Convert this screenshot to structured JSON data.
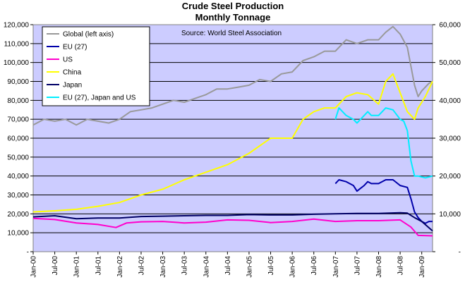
{
  "chart_data": {
    "type": "line",
    "title": "Crude Steel Production",
    "subtitle": "Monthly Tonnage",
    "source": "Source: World Steel Association",
    "xlabel": "",
    "ylabel": "",
    "ylim_left": [
      0,
      120000
    ],
    "ylim_right": [
      0,
      60000
    ],
    "y_ticks_left": [
      "-",
      "10,000",
      "20,000",
      "30,000",
      "40,000",
      "50,000",
      "60,000",
      "70,000",
      "80,000",
      "90,000",
      "100,000",
      "110,000",
      "120,000"
    ],
    "y_ticks_right": [
      "-",
      "10,000",
      "20,000",
      "30,000",
      "40,000",
      "50,000",
      "60,000"
    ],
    "x_ticks": [
      "Jan-00",
      "Jul-00",
      "Jan-01",
      "Jul-01",
      "Jan-02",
      "Jul-02",
      "Jan-03",
      "Jul-03",
      "Jan-04",
      "Jul-04",
      "Jan-05",
      "Jul-05",
      "Jan-06",
      "Jul-06",
      "Jan-07",
      "Jul-07",
      "Jan-08",
      "Jul-08",
      "Jan-09"
    ],
    "x_start": "2000-01",
    "x_end": "2009-04",
    "grid": true,
    "legend_position": "top-left",
    "plot_background": "#ccccff",
    "series": [
      {
        "name": "Global (left axis)",
        "axis": "left",
        "color": "#999999",
        "points": [
          [
            "2000-01",
            67000
          ],
          [
            "2000-04",
            70000
          ],
          [
            "2000-07",
            69000
          ],
          [
            "2000-10",
            70000
          ],
          [
            "2001-01",
            67000
          ],
          [
            "2001-04",
            70000
          ],
          [
            "2001-07",
            69000
          ],
          [
            "2001-10",
            68000
          ],
          [
            "2002-01",
            70000
          ],
          [
            "2002-04",
            74000
          ],
          [
            "2002-07",
            75000
          ],
          [
            "2002-10",
            76000
          ],
          [
            "2003-01",
            78000
          ],
          [
            "2003-04",
            80000
          ],
          [
            "2003-07",
            79000
          ],
          [
            "2003-10",
            81000
          ],
          [
            "2004-01",
            83000
          ],
          [
            "2004-04",
            86000
          ],
          [
            "2004-07",
            86000
          ],
          [
            "2004-10",
            87000
          ],
          [
            "2005-01",
            88000
          ],
          [
            "2005-04",
            91000
          ],
          [
            "2005-07",
            90000
          ],
          [
            "2005-10",
            94000
          ],
          [
            "2006-01",
            95000
          ],
          [
            "2006-04",
            101000
          ],
          [
            "2006-07",
            103000
          ],
          [
            "2006-10",
            106000
          ],
          [
            "2007-01",
            106000
          ],
          [
            "2007-04",
            112000
          ],
          [
            "2007-07",
            110000
          ],
          [
            "2007-10",
            112000
          ],
          [
            "2008-01",
            112000
          ],
          [
            "2008-03",
            116000
          ],
          [
            "2008-05",
            119000
          ],
          [
            "2008-07",
            115000
          ],
          [
            "2008-09",
            108000
          ],
          [
            "2008-11",
            88000
          ],
          [
            "2008-12",
            82000
          ],
          [
            "2009-01",
            85000
          ],
          [
            "2009-02",
            87000
          ],
          [
            "2009-03",
            89000
          ],
          [
            "2009-04",
            90000
          ]
        ]
      },
      {
        "name": "EU (27)",
        "axis": "right",
        "color": "#0000aa",
        "points": [
          [
            "2007-01",
            18000
          ],
          [
            "2007-02",
            19000
          ],
          [
            "2007-04",
            18500
          ],
          [
            "2007-06",
            17500
          ],
          [
            "2007-07",
            16000
          ],
          [
            "2007-09",
            17500
          ],
          [
            "2007-10",
            18500
          ],
          [
            "2007-11",
            18000
          ],
          [
            "2008-01",
            18000
          ],
          [
            "2008-03",
            19000
          ],
          [
            "2008-05",
            19000
          ],
          [
            "2008-07",
            17500
          ],
          [
            "2008-09",
            17000
          ],
          [
            "2008-10",
            14000
          ],
          [
            "2008-11",
            10500
          ],
          [
            "2008-12",
            9000
          ],
          [
            "2009-01",
            8000
          ],
          [
            "2009-02",
            7500
          ],
          [
            "2009-03",
            8000
          ],
          [
            "2009-04",
            8000
          ]
        ]
      },
      {
        "name": "US",
        "axis": "right",
        "color": "#ff00cc",
        "points": [
          [
            "2000-01",
            8800
          ],
          [
            "2000-07",
            8500
          ],
          [
            "2001-01",
            7600
          ],
          [
            "2001-07",
            7200
          ],
          [
            "2001-12",
            6400
          ],
          [
            "2002-03",
            7600
          ],
          [
            "2002-07",
            7900
          ],
          [
            "2003-01",
            8000
          ],
          [
            "2003-07",
            7600
          ],
          [
            "2004-01",
            7800
          ],
          [
            "2004-07",
            8400
          ],
          [
            "2005-01",
            8300
          ],
          [
            "2005-07",
            7700
          ],
          [
            "2006-01",
            8000
          ],
          [
            "2006-07",
            8600
          ],
          [
            "2007-01",
            8000
          ],
          [
            "2007-07",
            8200
          ],
          [
            "2008-01",
            8200
          ],
          [
            "2008-07",
            8400
          ],
          [
            "2008-10",
            6500
          ],
          [
            "2008-12",
            4300
          ],
          [
            "2009-04",
            4200
          ]
        ]
      },
      {
        "name": "China",
        "axis": "right",
        "color": "#ffff00",
        "points": [
          [
            "2000-01",
            10500
          ],
          [
            "2000-07",
            10800
          ],
          [
            "2001-01",
            11200
          ],
          [
            "2001-07",
            12000
          ],
          [
            "2002-01",
            13000
          ],
          [
            "2002-07",
            15000
          ],
          [
            "2003-01",
            16500
          ],
          [
            "2003-07",
            19000
          ],
          [
            "2004-01",
            21000
          ],
          [
            "2004-07",
            23000
          ],
          [
            "2005-01",
            26000
          ],
          [
            "2005-07",
            30000
          ],
          [
            "2006-01",
            30000
          ],
          [
            "2006-04",
            35000
          ],
          [
            "2006-07",
            37000
          ],
          [
            "2006-10",
            38000
          ],
          [
            "2007-01",
            38000
          ],
          [
            "2007-04",
            41000
          ],
          [
            "2007-07",
            42000
          ],
          [
            "2007-10",
            41500
          ],
          [
            "2008-01",
            39000
          ],
          [
            "2008-03",
            45000
          ],
          [
            "2008-05",
            47000
          ],
          [
            "2008-07",
            42000
          ],
          [
            "2008-09",
            37000
          ],
          [
            "2008-11",
            35000
          ],
          [
            "2008-12",
            38000
          ],
          [
            "2009-02",
            41000
          ],
          [
            "2009-04",
            45000
          ]
        ]
      },
      {
        "name": "Japan",
        "axis": "right",
        "color": "#000066",
        "points": [
          [
            "2000-01",
            9200
          ],
          [
            "2000-07",
            9500
          ],
          [
            "2001-01",
            8700
          ],
          [
            "2001-07",
            8900
          ],
          [
            "2002-01",
            8900
          ],
          [
            "2002-07",
            9300
          ],
          [
            "2003-01",
            9400
          ],
          [
            "2003-07",
            9500
          ],
          [
            "2004-01",
            9600
          ],
          [
            "2004-07",
            9600
          ],
          [
            "2005-01",
            9800
          ],
          [
            "2005-07",
            9700
          ],
          [
            "2006-01",
            9700
          ],
          [
            "2006-07",
            9900
          ],
          [
            "2007-01",
            10000
          ],
          [
            "2007-07",
            10100
          ],
          [
            "2008-01",
            10100
          ],
          [
            "2008-07",
            10300
          ],
          [
            "2008-09",
            10200
          ],
          [
            "2008-11",
            9000
          ],
          [
            "2009-01",
            8000
          ],
          [
            "2009-04",
            5500
          ]
        ]
      },
      {
        "name": "EU (27), Japan and US",
        "axis": "right",
        "color": "#00eeff",
        "points": [
          [
            "2007-01",
            35000
          ],
          [
            "2007-02",
            38000
          ],
          [
            "2007-04",
            36000
          ],
          [
            "2007-06",
            35000
          ],
          [
            "2007-07",
            34000
          ],
          [
            "2007-09",
            36000
          ],
          [
            "2007-10",
            37000
          ],
          [
            "2007-11",
            36000
          ],
          [
            "2008-01",
            36000
          ],
          [
            "2008-03",
            38000
          ],
          [
            "2008-05",
            37500
          ],
          [
            "2008-07",
            35000
          ],
          [
            "2008-08",
            34500
          ],
          [
            "2008-09",
            32000
          ],
          [
            "2008-10",
            24000
          ],
          [
            "2008-11",
            20000
          ],
          [
            "2008-12",
            20000
          ],
          [
            "2009-02",
            19500
          ],
          [
            "2009-04",
            20000
          ]
        ]
      }
    ]
  }
}
